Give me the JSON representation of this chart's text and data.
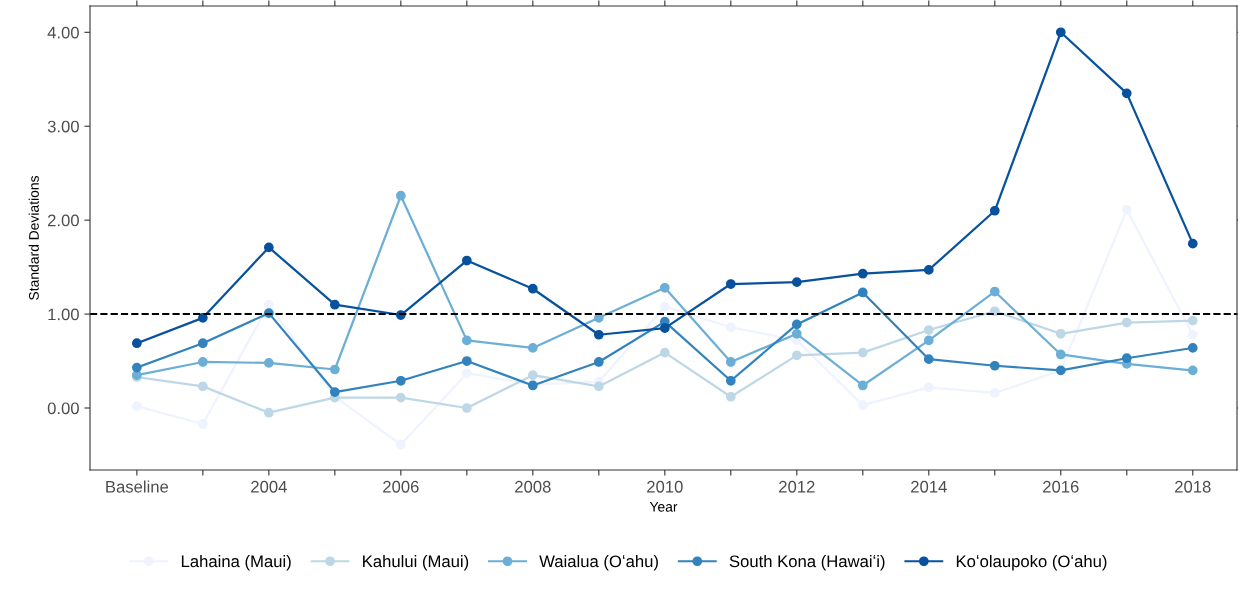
{
  "chart_data": {
    "type": "line",
    "xlabel": "Year",
    "ylabel": "Standard Deviations",
    "categories": [
      "Baseline",
      null,
      "2004",
      null,
      "2006",
      null,
      "2008",
      null,
      "2010",
      null,
      "2012",
      null,
      "2014",
      null,
      "2016",
      null,
      "2018"
    ],
    "series": [
      {
        "name": "Lahaina (Maui)",
        "color": "#eff3ff",
        "values": [
          0.02,
          -0.17,
          1.1,
          0.12,
          -0.39,
          0.37,
          0.25,
          0.28,
          1.08,
          0.86,
          0.72,
          0.03,
          0.22,
          0.16,
          0.4,
          2.11,
          0.78
        ]
      },
      {
        "name": "Kahului (Maui)",
        "color": "#bdd7e7",
        "values": [
          0.33,
          0.23,
          -0.05,
          0.11,
          0.11,
          0.0,
          0.35,
          0.23,
          0.59,
          0.12,
          0.56,
          0.59,
          0.83,
          1.03,
          0.79,
          0.91,
          0.93
        ]
      },
      {
        "name": "Waialua (Oʻahu)",
        "color": "#6baed6",
        "values": [
          0.35,
          0.49,
          0.48,
          0.41,
          2.26,
          0.72,
          0.64,
          0.96,
          1.28,
          0.49,
          0.79,
          0.24,
          0.72,
          1.24,
          0.57,
          0.47,
          0.4
        ]
      },
      {
        "name": "South Kona (Hawaiʻi)",
        "color": "#3182bd",
        "values": [
          0.43,
          0.69,
          1.01,
          0.17,
          0.29,
          0.5,
          0.24,
          0.49,
          0.92,
          0.29,
          0.89,
          1.23,
          0.52,
          0.45,
          0.4,
          0.53,
          0.64
        ]
      },
      {
        "name": "Koʻolaupoko (Oʻahu)",
        "color": "#08519c",
        "values": [
          0.69,
          0.96,
          1.71,
          1.1,
          0.99,
          1.57,
          1.27,
          0.78,
          0.85,
          1.32,
          1.34,
          1.43,
          1.47,
          2.1,
          4.0,
          3.35,
          1.75
        ]
      }
    ],
    "ylim": [
      -0.66,
      4.28
    ],
    "yticks": [
      {
        "value": 0,
        "label": "0.00"
      },
      {
        "value": 1,
        "label": "1.00"
      },
      {
        "value": 2,
        "label": "2.00"
      },
      {
        "value": 3,
        "label": "3.00"
      },
      {
        "value": 4,
        "label": "4.00"
      }
    ],
    "ref_lines": [
      {
        "axis": "y",
        "value": 1,
        "color": "#000000",
        "line_style": "dashed"
      }
    ],
    "marker": "circle",
    "line_style": "solid",
    "grid": false,
    "legend": "bottom"
  }
}
